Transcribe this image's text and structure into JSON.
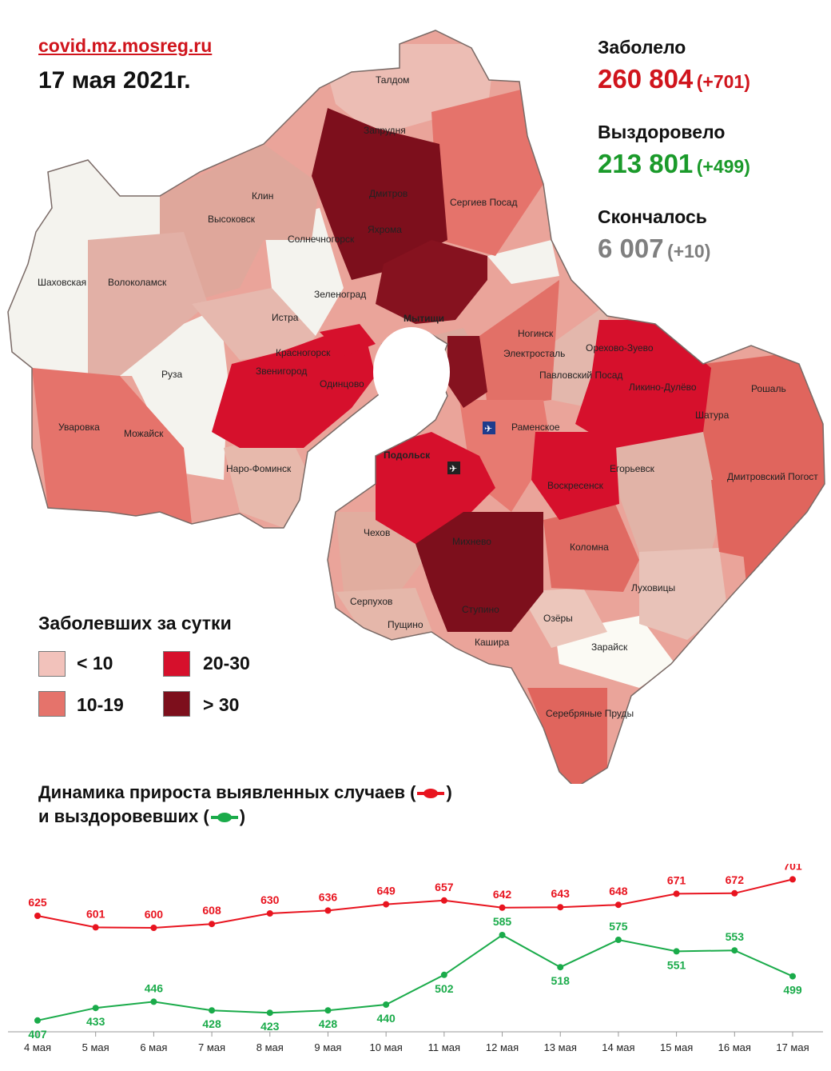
{
  "header": {
    "source": "covid.mz.mosreg.ru",
    "date": "17 мая 2021г."
  },
  "stats": {
    "infected": {
      "label": "Заболело",
      "value": "260 804",
      "delta": "(+701)",
      "color": "#d0141c"
    },
    "recovered": {
      "label": "Выздоровело",
      "value": "213 801",
      "delta": "(+499)",
      "color": "#1a9a2a"
    },
    "died": {
      "label": "Скончалось",
      "value": "6 007",
      "delta": "(+10)",
      "color": "#7f7f7f"
    }
  },
  "legend": {
    "title": "Заболевших за сутки",
    "items": [
      {
        "label": "< 10",
        "color": "#f2c2bb"
      },
      {
        "label": "20-30",
        "color": "#d6102c"
      },
      {
        "label": "10-19",
        "color": "#e5736b"
      },
      {
        "label": "> 30",
        "color": "#7d0f1c"
      }
    ]
  },
  "map": {
    "places": [
      "Талдом",
      "Запрудня",
      "Дмитров",
      "Яхрома",
      "Сергиев Посад",
      "Клин",
      "Высоковск",
      "Солнечногорск",
      "Шаховская",
      "Волоколамск",
      "Зеленоград",
      "Истра",
      "Мытищи",
      "Ногинск",
      "Электросталь",
      "Павловский Посад",
      "Орехово-Зуево",
      "Ликино-Дулёво",
      "Рошаль",
      "Шатура",
      "Красногорск",
      "Звенигород",
      "Одинцово",
      "Руза",
      "Уваровка",
      "Можайск",
      "Наро-Фоминск",
      "Раменское",
      "Егорьевск",
      "Воскресенск",
      "Дмитровский Погост",
      "Подольск",
      "Чехов",
      "Михнево",
      "Коломна",
      "Луховицы",
      "Серпухов",
      "Пущино",
      "Ступино",
      "Озёры",
      "Кашира",
      "Зарайск",
      "Серебряные Пруды"
    ]
  },
  "dynamics": {
    "title_line1": "Динамика прироста выявленных случаев (",
    "title_close1": ")",
    "title_line2": "и выздоровевших (",
    "title_close2": ")",
    "cases_color": "#e8141f",
    "recovered_color": "#1aab4a"
  },
  "chart_data": {
    "type": "line",
    "categories": [
      "4 мая",
      "5 мая",
      "6 мая",
      "7 мая",
      "8 мая",
      "9 мая",
      "10 мая",
      "11 мая",
      "12 мая",
      "13 мая",
      "14 мая",
      "15 мая",
      "16 мая",
      "17 мая"
    ],
    "series": [
      {
        "name": "выявленных случаев",
        "color": "#e8141f",
        "values": [
          625,
          601,
          600,
          608,
          630,
          636,
          649,
          657,
          642,
          643,
          648,
          671,
          672,
          701
        ]
      },
      {
        "name": "выздоровевших",
        "color": "#1aab4a",
        "values": [
          407,
          433,
          446,
          428,
          423,
          428,
          440,
          502,
          585,
          518,
          575,
          551,
          553,
          499
        ]
      }
    ],
    "ylim": [
      300,
      800
    ]
  }
}
